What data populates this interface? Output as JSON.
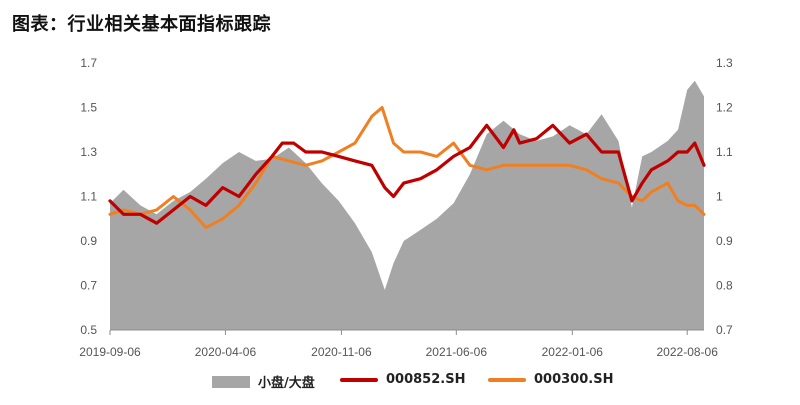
{
  "title": "图表：行业相关基本面指标跟踪",
  "colors": {
    "area": "#a6a6a6",
    "line1": "#c00000",
    "line2": "#f07f22"
  },
  "chart_data": {
    "type": "line",
    "left_axis": {
      "min": 0.5,
      "max": 1.7,
      "ticks": [
        "1.7",
        "1.5",
        "1.3",
        "1.1",
        "0.9",
        "0.7",
        "0.5"
      ]
    },
    "right_axis": {
      "min": 0.7,
      "max": 1.3,
      "ticks": [
        "1.3",
        "1.2",
        "1.1",
        "1",
        "0.9",
        "0.8",
        "0.7"
      ]
    },
    "x_ticks": [
      "2019-09-06",
      "2020-04-06",
      "2020-11-06",
      "2021-06-06",
      "2022-01-06",
      "2022-08-06"
    ],
    "x_range": [
      "2019-09-06",
      "2022-09-06"
    ],
    "series": [
      {
        "name": "小盘/大盘",
        "axis": "left",
        "style": "area",
        "x": [
          "2019-09-06",
          "2019-10-01",
          "2019-11-01",
          "2019-12-01",
          "2020-01-01",
          "2020-02-01",
          "2020-03-01",
          "2020-04-01",
          "2020-05-01",
          "2020-06-01",
          "2020-07-01",
          "2020-08-01",
          "2020-09-01",
          "2020-10-01",
          "2020-11-01",
          "2020-12-01",
          "2021-01-01",
          "2021-01-25",
          "2021-02-10",
          "2021-03-01",
          "2021-04-01",
          "2021-05-01",
          "2021-06-01",
          "2021-07-01",
          "2021-08-01",
          "2021-09-01",
          "2021-10-01",
          "2021-11-01",
          "2021-12-01",
          "2022-01-01",
          "2022-02-01",
          "2022-03-01",
          "2022-04-01",
          "2022-04-26",
          "2022-05-15",
          "2022-06-01",
          "2022-07-01",
          "2022-07-20",
          "2022-08-06",
          "2022-08-20",
          "2022-09-06"
        ],
        "values": [
          1.07,
          1.13,
          1.06,
          1.02,
          1.08,
          1.12,
          1.18,
          1.25,
          1.3,
          1.26,
          1.27,
          1.32,
          1.25,
          1.16,
          1.08,
          0.98,
          0.85,
          0.68,
          0.8,
          0.9,
          0.95,
          1.0,
          1.07,
          1.2,
          1.38,
          1.44,
          1.38,
          1.35,
          1.37,
          1.42,
          1.38,
          1.47,
          1.35,
          1.05,
          1.28,
          1.3,
          1.35,
          1.4,
          1.58,
          1.62,
          1.55
        ]
      },
      {
        "name": "000852.SH",
        "axis": "right",
        "style": "line",
        "x": [
          "2019-09-06",
          "2019-10-01",
          "2019-11-01",
          "2019-12-01",
          "2020-01-01",
          "2020-02-01",
          "2020-03-01",
          "2020-04-01",
          "2020-05-01",
          "2020-06-01",
          "2020-07-01",
          "2020-07-20",
          "2020-08-10",
          "2020-09-01",
          "2020-10-01",
          "2020-11-01",
          "2020-12-01",
          "2021-01-01",
          "2021-01-25",
          "2021-02-10",
          "2021-03-01",
          "2021-04-01",
          "2021-05-01",
          "2021-06-01",
          "2021-07-01",
          "2021-08-01",
          "2021-09-01",
          "2021-09-20",
          "2021-10-01",
          "2021-11-01",
          "2021-12-01",
          "2022-01-01",
          "2022-02-01",
          "2022-03-01",
          "2022-04-01",
          "2022-04-26",
          "2022-05-15",
          "2022-06-01",
          "2022-07-01",
          "2022-07-20",
          "2022-08-06",
          "2022-08-20",
          "2022-09-06"
        ],
        "values": [
          0.99,
          0.96,
          0.96,
          0.94,
          0.97,
          1.0,
          0.98,
          1.02,
          1.0,
          1.05,
          1.09,
          1.12,
          1.12,
          1.1,
          1.1,
          1.09,
          1.08,
          1.07,
          1.02,
          1.0,
          1.03,
          1.04,
          1.06,
          1.09,
          1.11,
          1.16,
          1.11,
          1.15,
          1.12,
          1.13,
          1.16,
          1.12,
          1.14,
          1.1,
          1.1,
          0.99,
          1.03,
          1.06,
          1.08,
          1.1,
          1.1,
          1.12,
          1.07
        ]
      },
      {
        "name": "000300.SH",
        "axis": "right",
        "style": "line",
        "x": [
          "2019-09-06",
          "2019-10-01",
          "2019-11-01",
          "2019-12-01",
          "2020-01-01",
          "2020-02-01",
          "2020-03-01",
          "2020-04-01",
          "2020-05-01",
          "2020-06-01",
          "2020-07-01",
          "2020-08-01",
          "2020-09-01",
          "2020-10-01",
          "2020-11-01",
          "2020-12-01",
          "2021-01-01",
          "2021-01-20",
          "2021-02-10",
          "2021-03-01",
          "2021-04-01",
          "2021-05-01",
          "2021-06-01",
          "2021-07-01",
          "2021-08-01",
          "2021-09-01",
          "2021-10-01",
          "2021-11-01",
          "2021-12-01",
          "2022-01-01",
          "2022-02-01",
          "2022-03-01",
          "2022-04-01",
          "2022-04-26",
          "2022-05-15",
          "2022-06-01",
          "2022-07-01",
          "2022-07-20",
          "2022-08-06",
          "2022-08-20",
          "2022-09-06"
        ],
        "values": [
          0.96,
          0.97,
          0.96,
          0.97,
          1.0,
          0.97,
          0.93,
          0.95,
          0.98,
          1.03,
          1.09,
          1.08,
          1.07,
          1.08,
          1.1,
          1.12,
          1.18,
          1.2,
          1.12,
          1.1,
          1.1,
          1.09,
          1.12,
          1.07,
          1.06,
          1.07,
          1.07,
          1.07,
          1.07,
          1.07,
          1.06,
          1.04,
          1.03,
          1.0,
          0.99,
          1.01,
          1.03,
          0.99,
          0.98,
          0.98,
          0.96
        ]
      }
    ],
    "legend_position": "bottom"
  }
}
